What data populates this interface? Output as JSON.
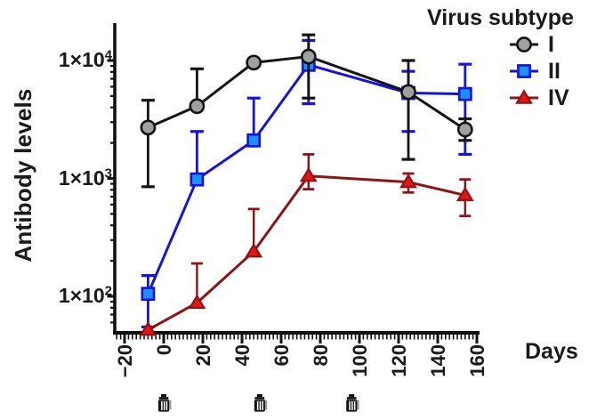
{
  "figure": {
    "background": "#ffffff",
    "text_color": "#1a1a1a"
  },
  "chart_data": {
    "type": "line",
    "title": "",
    "legend": {
      "title": "Virus subtype",
      "position": "top-right"
    },
    "x_axis": {
      "label": "Days",
      "range": [
        -25,
        161
      ],
      "major_ticks": [
        -20,
        0,
        20,
        40,
        60,
        80,
        100,
        120,
        140,
        160
      ],
      "tick_labels": [
        "−20",
        "0",
        "20",
        "40",
        "60",
        "80",
        "100",
        "120",
        "140",
        "160"
      ],
      "minor_tick_step": 2
    },
    "y_axis": {
      "label": "Antibody levels",
      "scale": "log10",
      "range": [
        50,
        20000
      ],
      "major_ticks": [
        100,
        1000,
        10000
      ],
      "tick_labels": [
        {
          "text": "1×10",
          "exp": "2"
        },
        {
          "text": "1×10",
          "exp": "3"
        },
        {
          "text": "1×10",
          "exp": "4"
        }
      ]
    },
    "injections": {
      "icon": "vial-injection",
      "days": [
        0,
        49,
        96
      ]
    },
    "series": [
      {
        "name": "I",
        "marker": "circle",
        "line_color": "#141414",
        "marker_fill": "#a0a0a0",
        "points": [
          {
            "day": -8,
            "value": 2700,
            "err_lo": 850,
            "err_hi": 4600
          },
          {
            "day": 17,
            "value": 4100,
            "err_lo": null,
            "err_hi": 8500
          },
          {
            "day": 46,
            "value": 9600,
            "err_lo": null,
            "err_hi": null
          },
          {
            "day": 74,
            "value": 10800,
            "err_lo": 4800,
            "err_hi": 16500
          },
          {
            "day": 125,
            "value": 5400,
            "err_lo": 1450,
            "err_hi": 10000
          },
          {
            "day": 154,
            "value": 2600,
            "err_lo": 2100,
            "err_hi": 3200
          }
        ]
      },
      {
        "name": "II",
        "marker": "square",
        "line_color": "#1313dd",
        "marker_fill": "#1e90ff",
        "points": [
          {
            "day": -8,
            "value": 105,
            "err_lo": 55,
            "err_hi": 150
          },
          {
            "day": 17,
            "value": 980,
            "err_lo": null,
            "err_hi": 2500
          },
          {
            "day": 46,
            "value": 2100,
            "err_lo": null,
            "err_hi": 4800
          },
          {
            "day": 74,
            "value": 9200,
            "err_lo": 4300,
            "err_hi": 14800
          },
          {
            "day": 125,
            "value": 5300,
            "err_lo": 2500,
            "err_hi": 8100
          },
          {
            "day": 154,
            "value": 5200,
            "err_lo": 1600,
            "err_hi": 9300
          }
        ]
      },
      {
        "name": "IV",
        "marker": "triangle",
        "line_color": "#8d1414",
        "marker_fill": "#e31616",
        "points": [
          {
            "day": -8,
            "value": 52,
            "err_lo": null,
            "err_hi": null
          },
          {
            "day": 17,
            "value": 88,
            "err_lo": null,
            "err_hi": 190
          },
          {
            "day": 46,
            "value": 240,
            "err_lo": null,
            "err_hi": 550
          },
          {
            "day": 74,
            "value": 1050,
            "err_lo": 810,
            "err_hi": 1600
          },
          {
            "day": 125,
            "value": 930,
            "err_lo": 760,
            "err_hi": 1100
          },
          {
            "day": 154,
            "value": 720,
            "err_lo": 480,
            "err_hi": 980
          }
        ]
      }
    ]
  }
}
